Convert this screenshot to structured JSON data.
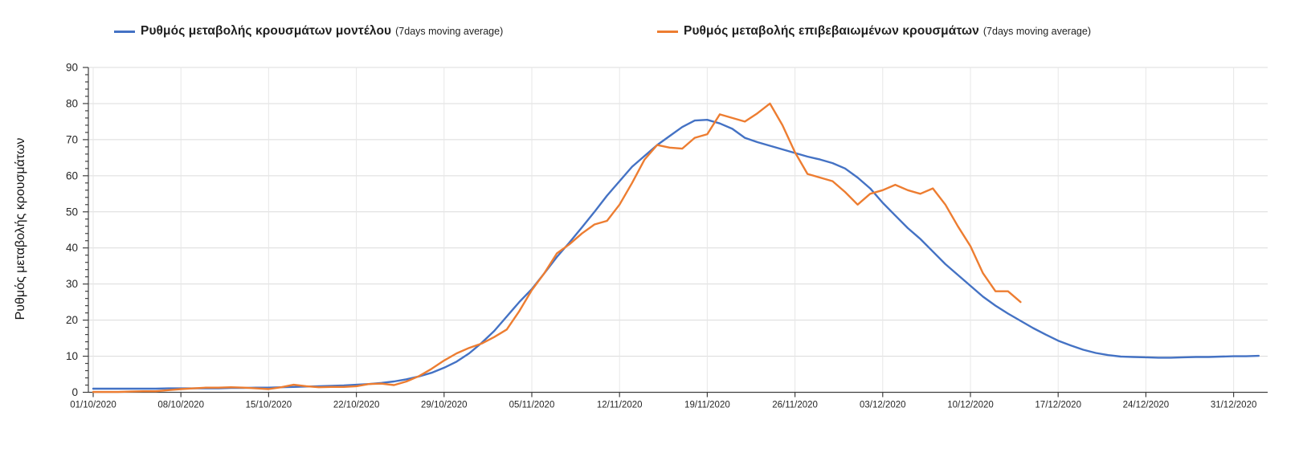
{
  "legend": [
    {
      "label": "Ρυθμός μεταβολής κρουσμάτων μοντέλου",
      "suffix": "(7days moving average)",
      "color": "#4472C4"
    },
    {
      "label": "Ρυθμός μεταβολής επιβεβαιωμένων κρουσμάτων",
      "suffix": "(7days moving average)",
      "color": "#ED7D31"
    }
  ],
  "y_axis": {
    "title": "Ρυθμός μεταβολής κρουσμάτων",
    "min": 0,
    "max": 90,
    "major_step": 10,
    "minor_step": 2,
    "tick_labels": [
      "0",
      "10",
      "20",
      "30",
      "40",
      "50",
      "60",
      "70",
      "80",
      "90"
    ]
  },
  "x_axis": {
    "tick_labels": [
      "01/10/2020",
      "08/10/2020",
      "15/10/2020",
      "22/10/2020",
      "29/10/2020",
      "05/11/2020",
      "12/11/2020",
      "19/11/2020",
      "26/11/2020",
      "03/12/2020",
      "10/12/2020",
      "17/12/2020",
      "24/12/2020",
      "31/12/2020"
    ],
    "days_per_tick": 7
  },
  "colors": {
    "model_line": "#4472C4",
    "confirmed_line": "#ED7D31",
    "gridline": "#DCDCDC",
    "axis": "#404040",
    "text": "#262626"
  },
  "chart_data": {
    "type": "line",
    "title": "",
    "xlabel": "",
    "ylabel": "Ρυθμός μεταβολής κρουσμάτων",
    "ylim": [
      0,
      90
    ],
    "grid": true,
    "legend_position": "top",
    "x_unit": "days since 01/10/2020",
    "x_tick_dates": [
      "01/10/2020",
      "08/10/2020",
      "15/10/2020",
      "22/10/2020",
      "29/10/2020",
      "05/11/2020",
      "12/11/2020",
      "19/11/2020",
      "26/11/2020",
      "03/12/2020",
      "10/12/2020",
      "17/12/2020",
      "24/12/2020",
      "31/12/2020"
    ],
    "series": [
      {
        "name": "Ρυθμός μεταβολής κρουσμάτων μοντέλου (7days moving average)",
        "color": "#4472C4",
        "start_day": 0,
        "values": [
          1.0,
          1.0,
          1.0,
          1.0,
          1.0,
          1.0,
          1.1,
          1.1,
          1.1,
          1.1,
          1.1,
          1.2,
          1.2,
          1.3,
          1.3,
          1.4,
          1.5,
          1.6,
          1.7,
          1.8,
          1.9,
          2.1,
          2.3,
          2.6,
          3.0,
          3.6,
          4.4,
          5.4,
          6.8,
          8.5,
          10.8,
          13.7,
          17.0,
          21.0,
          25.0,
          28.6,
          33.0,
          37.5,
          41.5,
          45.7,
          50.0,
          54.5,
          58.5,
          62.5,
          65.5,
          68.5,
          71.0,
          73.5,
          75.3,
          75.5,
          74.5,
          73.0,
          70.5,
          69.3,
          68.3,
          67.3,
          66.3,
          65.3,
          64.5,
          63.5,
          62.0,
          59.5,
          56.5,
          52.5,
          49.0,
          45.5,
          42.5,
          39.0,
          35.5,
          32.5,
          29.5,
          26.5,
          24.0,
          21.8,
          19.8,
          17.8,
          16.0,
          14.3,
          13.0,
          11.8,
          10.9,
          10.3,
          9.9,
          9.8,
          9.7,
          9.6,
          9.6,
          9.7,
          9.8,
          9.8,
          9.9,
          10.0,
          10.0,
          10.1
        ]
      },
      {
        "name": "Ρυθμός μεταβολής επιβεβαιωμένων κρουσμάτων (7days moving average)",
        "color": "#ED7D31",
        "start_day": 0,
        "values": [
          0.1,
          0.1,
          0.1,
          0.2,
          0.3,
          0.3,
          0.6,
          0.9,
          1.1,
          1.3,
          1.3,
          1.4,
          1.3,
          1.1,
          0.9,
          1.4,
          2.1,
          1.7,
          1.4,
          1.5,
          1.5,
          1.7,
          2.3,
          2.4,
          2.0,
          3.0,
          4.5,
          6.5,
          8.8,
          10.8,
          12.3,
          13.5,
          15.3,
          17.4,
          22.5,
          28.3,
          33.0,
          38.5,
          41.0,
          44.0,
          46.5,
          47.5,
          52.0,
          58.0,
          64.5,
          68.5,
          67.8,
          67.5,
          70.5,
          71.5,
          77.0,
          76.0,
          75.0,
          77.3,
          80.0,
          74.0,
          66.5,
          60.5,
          59.5,
          58.5,
          55.5,
          52.0,
          55.0,
          56.0,
          57.5,
          56.0,
          55.0,
          56.5,
          52.0,
          46.0,
          40.5,
          33.0,
          28.0,
          28.0,
          25.0
        ]
      }
    ]
  }
}
